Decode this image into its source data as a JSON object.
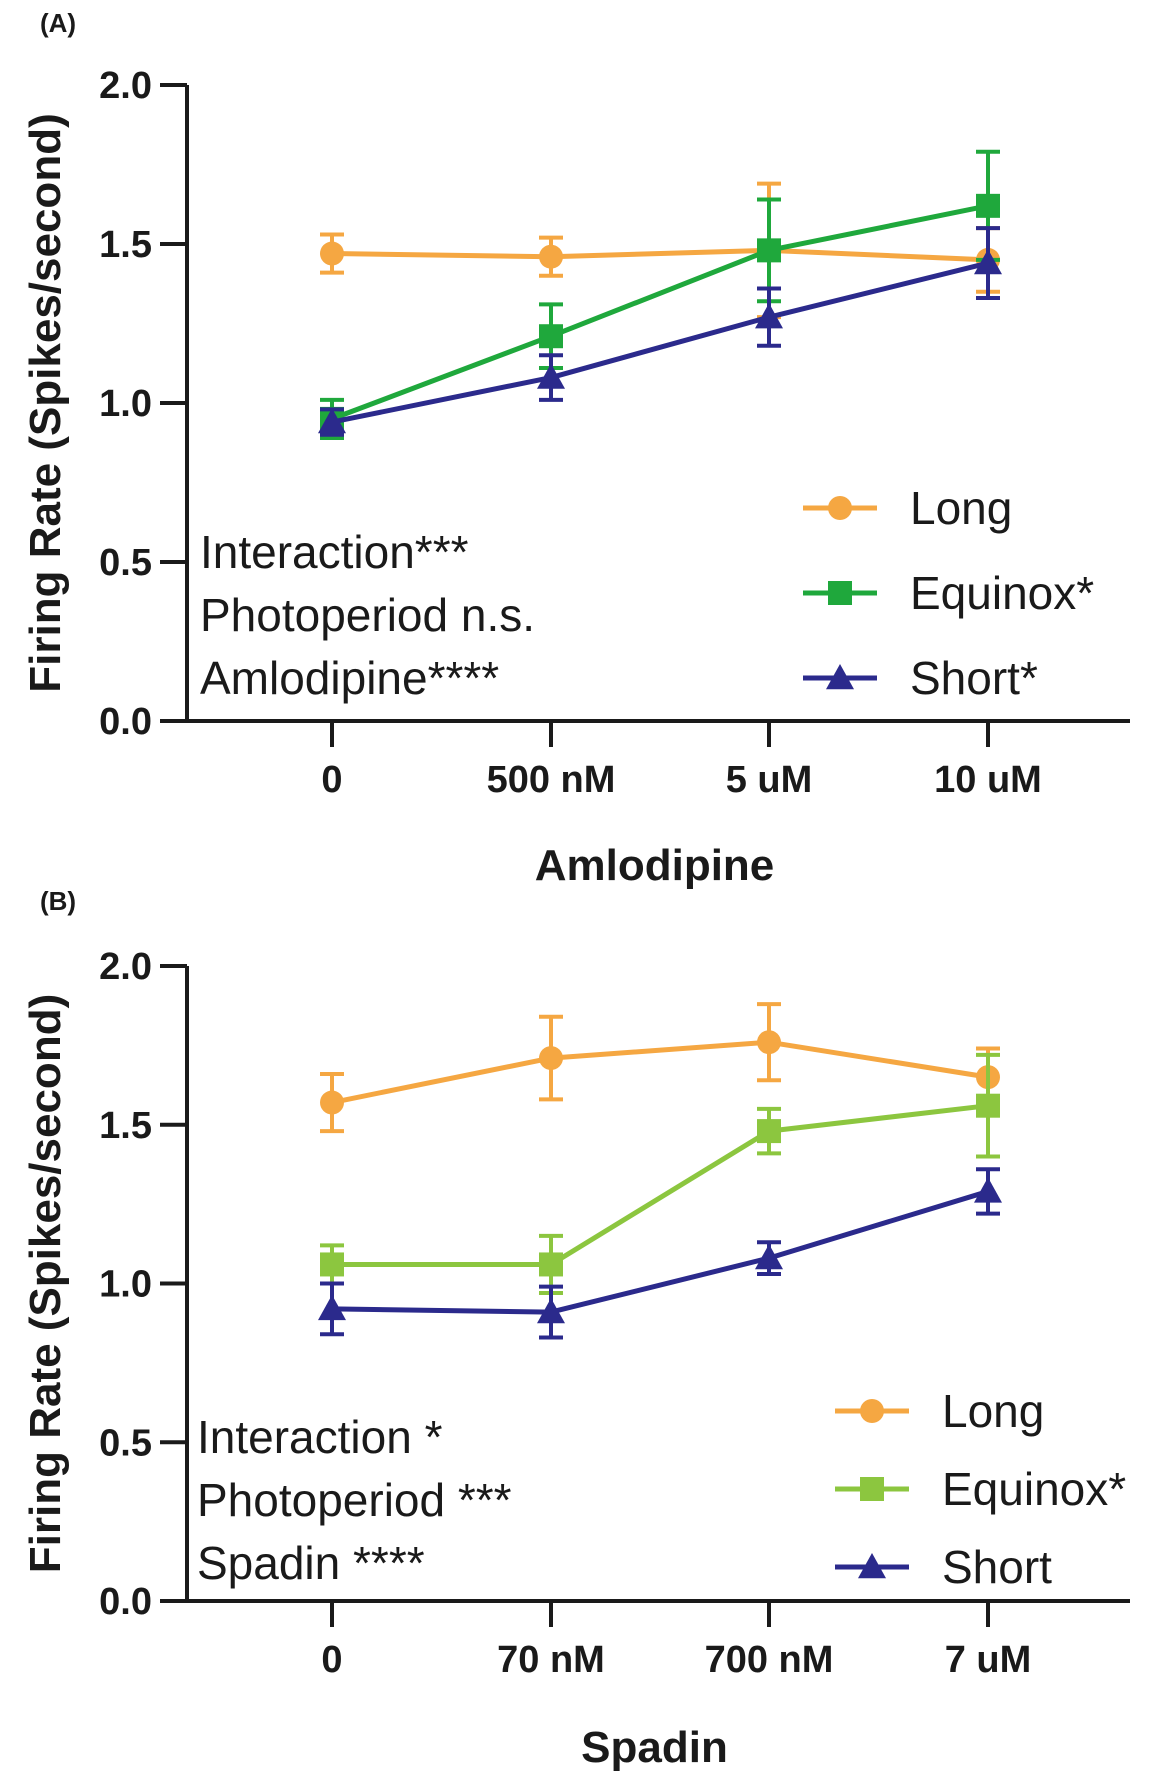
{
  "chart_data": [
    {
      "type": "line",
      "panel_label": "(A)",
      "categories": [
        "0",
        "500 nM",
        "5 uM",
        "10 uM"
      ],
      "xlabel": "Amlodipine",
      "ylabel": "Firing Rate (Spikes/second)",
      "ylim": [
        0,
        2.0
      ],
      "yticks": [
        "0.0",
        "0.5",
        "1.0",
        "1.5",
        "2.0"
      ],
      "grid": false,
      "legend_position": "bottom-right",
      "annotations": [
        "Interaction***",
        "Photoperiod n.s.",
        "Amlodipine****"
      ],
      "series": [
        {
          "name": "Long",
          "marker": "circle",
          "color": "#F5A742",
          "values": [
            1.47,
            1.46,
            1.48,
            1.45
          ],
          "errors": [
            0.06,
            0.06,
            0.21,
            0.1
          ]
        },
        {
          "name": "Equinox*",
          "marker": "square",
          "color": "#1FA83C",
          "values": [
            0.95,
            1.21,
            1.48,
            1.62
          ],
          "errors": [
            0.06,
            0.1,
            0.16,
            0.17
          ]
        },
        {
          "name": "Short*",
          "marker": "triangle",
          "color": "#2B2A8C",
          "values": [
            0.94,
            1.08,
            1.27,
            1.44
          ],
          "errors": [
            0.04,
            0.07,
            0.09,
            0.11
          ]
        }
      ]
    },
    {
      "type": "line",
      "panel_label": "(B)",
      "categories": [
        "0",
        "70 nM",
        "700 nM",
        "7 uM"
      ],
      "xlabel": "Spadin",
      "ylabel": "Firing Rate (Spikes/second)",
      "ylim": [
        0,
        2.0
      ],
      "yticks": [
        "0.0",
        "0.5",
        "1.0",
        "1.5",
        "2.0"
      ],
      "grid": false,
      "legend_position": "bottom-right",
      "annotations": [
        "Interaction *",
        "Photoperiod ***",
        "Spadin ****"
      ],
      "series": [
        {
          "name": "Long",
          "marker": "circle",
          "color": "#F5A742",
          "values": [
            1.57,
            1.71,
            1.76,
            1.65
          ],
          "errors": [
            0.09,
            0.13,
            0.12,
            0.09
          ]
        },
        {
          "name": "Equinox*",
          "marker": "square",
          "color": "#8CC63F",
          "values": [
            1.06,
            1.06,
            1.48,
            1.56
          ],
          "errors": [
            0.06,
            0.09,
            0.07,
            0.16
          ]
        },
        {
          "name": "Short",
          "marker": "triangle",
          "color": "#2B2A8C",
          "values": [
            0.92,
            0.91,
            1.08,
            1.29
          ],
          "errors": [
            0.08,
            0.08,
            0.05,
            0.07
          ]
        }
      ]
    }
  ]
}
